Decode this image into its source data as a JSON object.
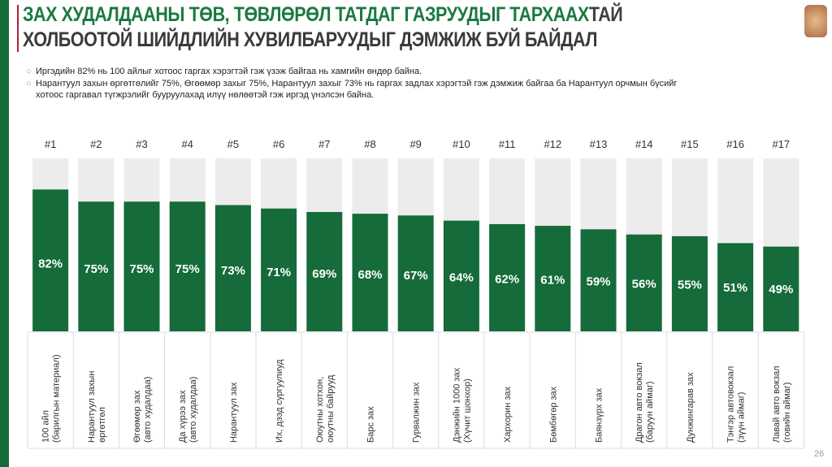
{
  "title": {
    "line1_green": "ЗАХ ХУДАЛДААНЫ ТӨВ, ТӨВЛӨРӨЛ ТАТДАГ ГАЗРУУДЫГ ТАРХААХ",
    "line1_gray": "ТАЙ",
    "line2": "ХОЛБООТОЙ ШИЙДЛИЙН ХУВИЛБАРУУДЫГ ДЭМЖИЖ БУЙ БАЙДАЛ"
  },
  "bullets": [
    "Иргэдийн 82% нь 100 айлыг хотоос гаргах хэрэгтэй гэж үзэж байгаа нь хамгийн өндөр байна.",
    "Нарантуул захын өргөтгөлийг 75%, Өгөөмөр захыг 75%, Нарантуул захыг 73% нь гаргах задлах хэрэгтэй гэж дэмжиж байгаа ба Нарантуул орчмын бүсийг",
    "хотоос гаргавал түгжрэлийг бууруулахад илүү нөлөөтэй гэж иргэд үнэлсэн байна."
  ],
  "page_number": "26",
  "colors": {
    "bar": "#156b3a",
    "background_bar": "#ececec",
    "accent_red": "#b0203a"
  },
  "chart_data": {
    "type": "bar",
    "ylim": [
      0,
      100
    ],
    "ranks": [
      "#1",
      "#2",
      "#3",
      "#4",
      "#5",
      "#6",
      "#7",
      "#8",
      "#9",
      "#10",
      "#11",
      "#12",
      "#13",
      "#14",
      "#15",
      "#16",
      "#17"
    ],
    "categories": [
      [
        "100 айл",
        "(барилгын материал)"
      ],
      [
        "Нарантуул захын",
        "өргөтгөл"
      ],
      [
        "Өгөөмөр зах",
        "(авто худалдаа)"
      ],
      [
        "Да хүрээ зах",
        "(авто худалдаа)"
      ],
      [
        "Нарантуул зах"
      ],
      [
        "Их, дээд сургуулиуд"
      ],
      [
        "Оюутны хотхон,",
        "оюутны байрууд"
      ],
      [
        "Барс зах"
      ],
      [
        "Гурвалжин зах"
      ],
      [
        "Дэнжийн 1000 зах",
        "(Хүчит шонхор)"
      ],
      [
        "Хархорин зах"
      ],
      [
        "Бөмбөгөр зах"
      ],
      [
        "Баянзүрх зах"
      ],
      [
        "Драгон авто вокзал",
        "(баруун аймаг)"
      ],
      [
        "Дунжингарав зах"
      ],
      [
        "Тэнгэр автовокзал",
        "(зүүн аймаг)"
      ],
      [
        "Лавай авто вокзал",
        "(говийн аймаг)"
      ]
    ],
    "values": [
      82,
      75,
      75,
      75,
      73,
      71,
      69,
      68,
      67,
      64,
      62,
      61,
      59,
      56,
      55,
      51,
      49
    ],
    "data_labels": [
      "82%",
      "75%",
      "75%",
      "75%",
      "73%",
      "71%",
      "69%",
      "68%",
      "67%",
      "64%",
      "62%",
      "61%",
      "59%",
      "56%",
      "55%",
      "51%",
      "49%"
    ]
  }
}
